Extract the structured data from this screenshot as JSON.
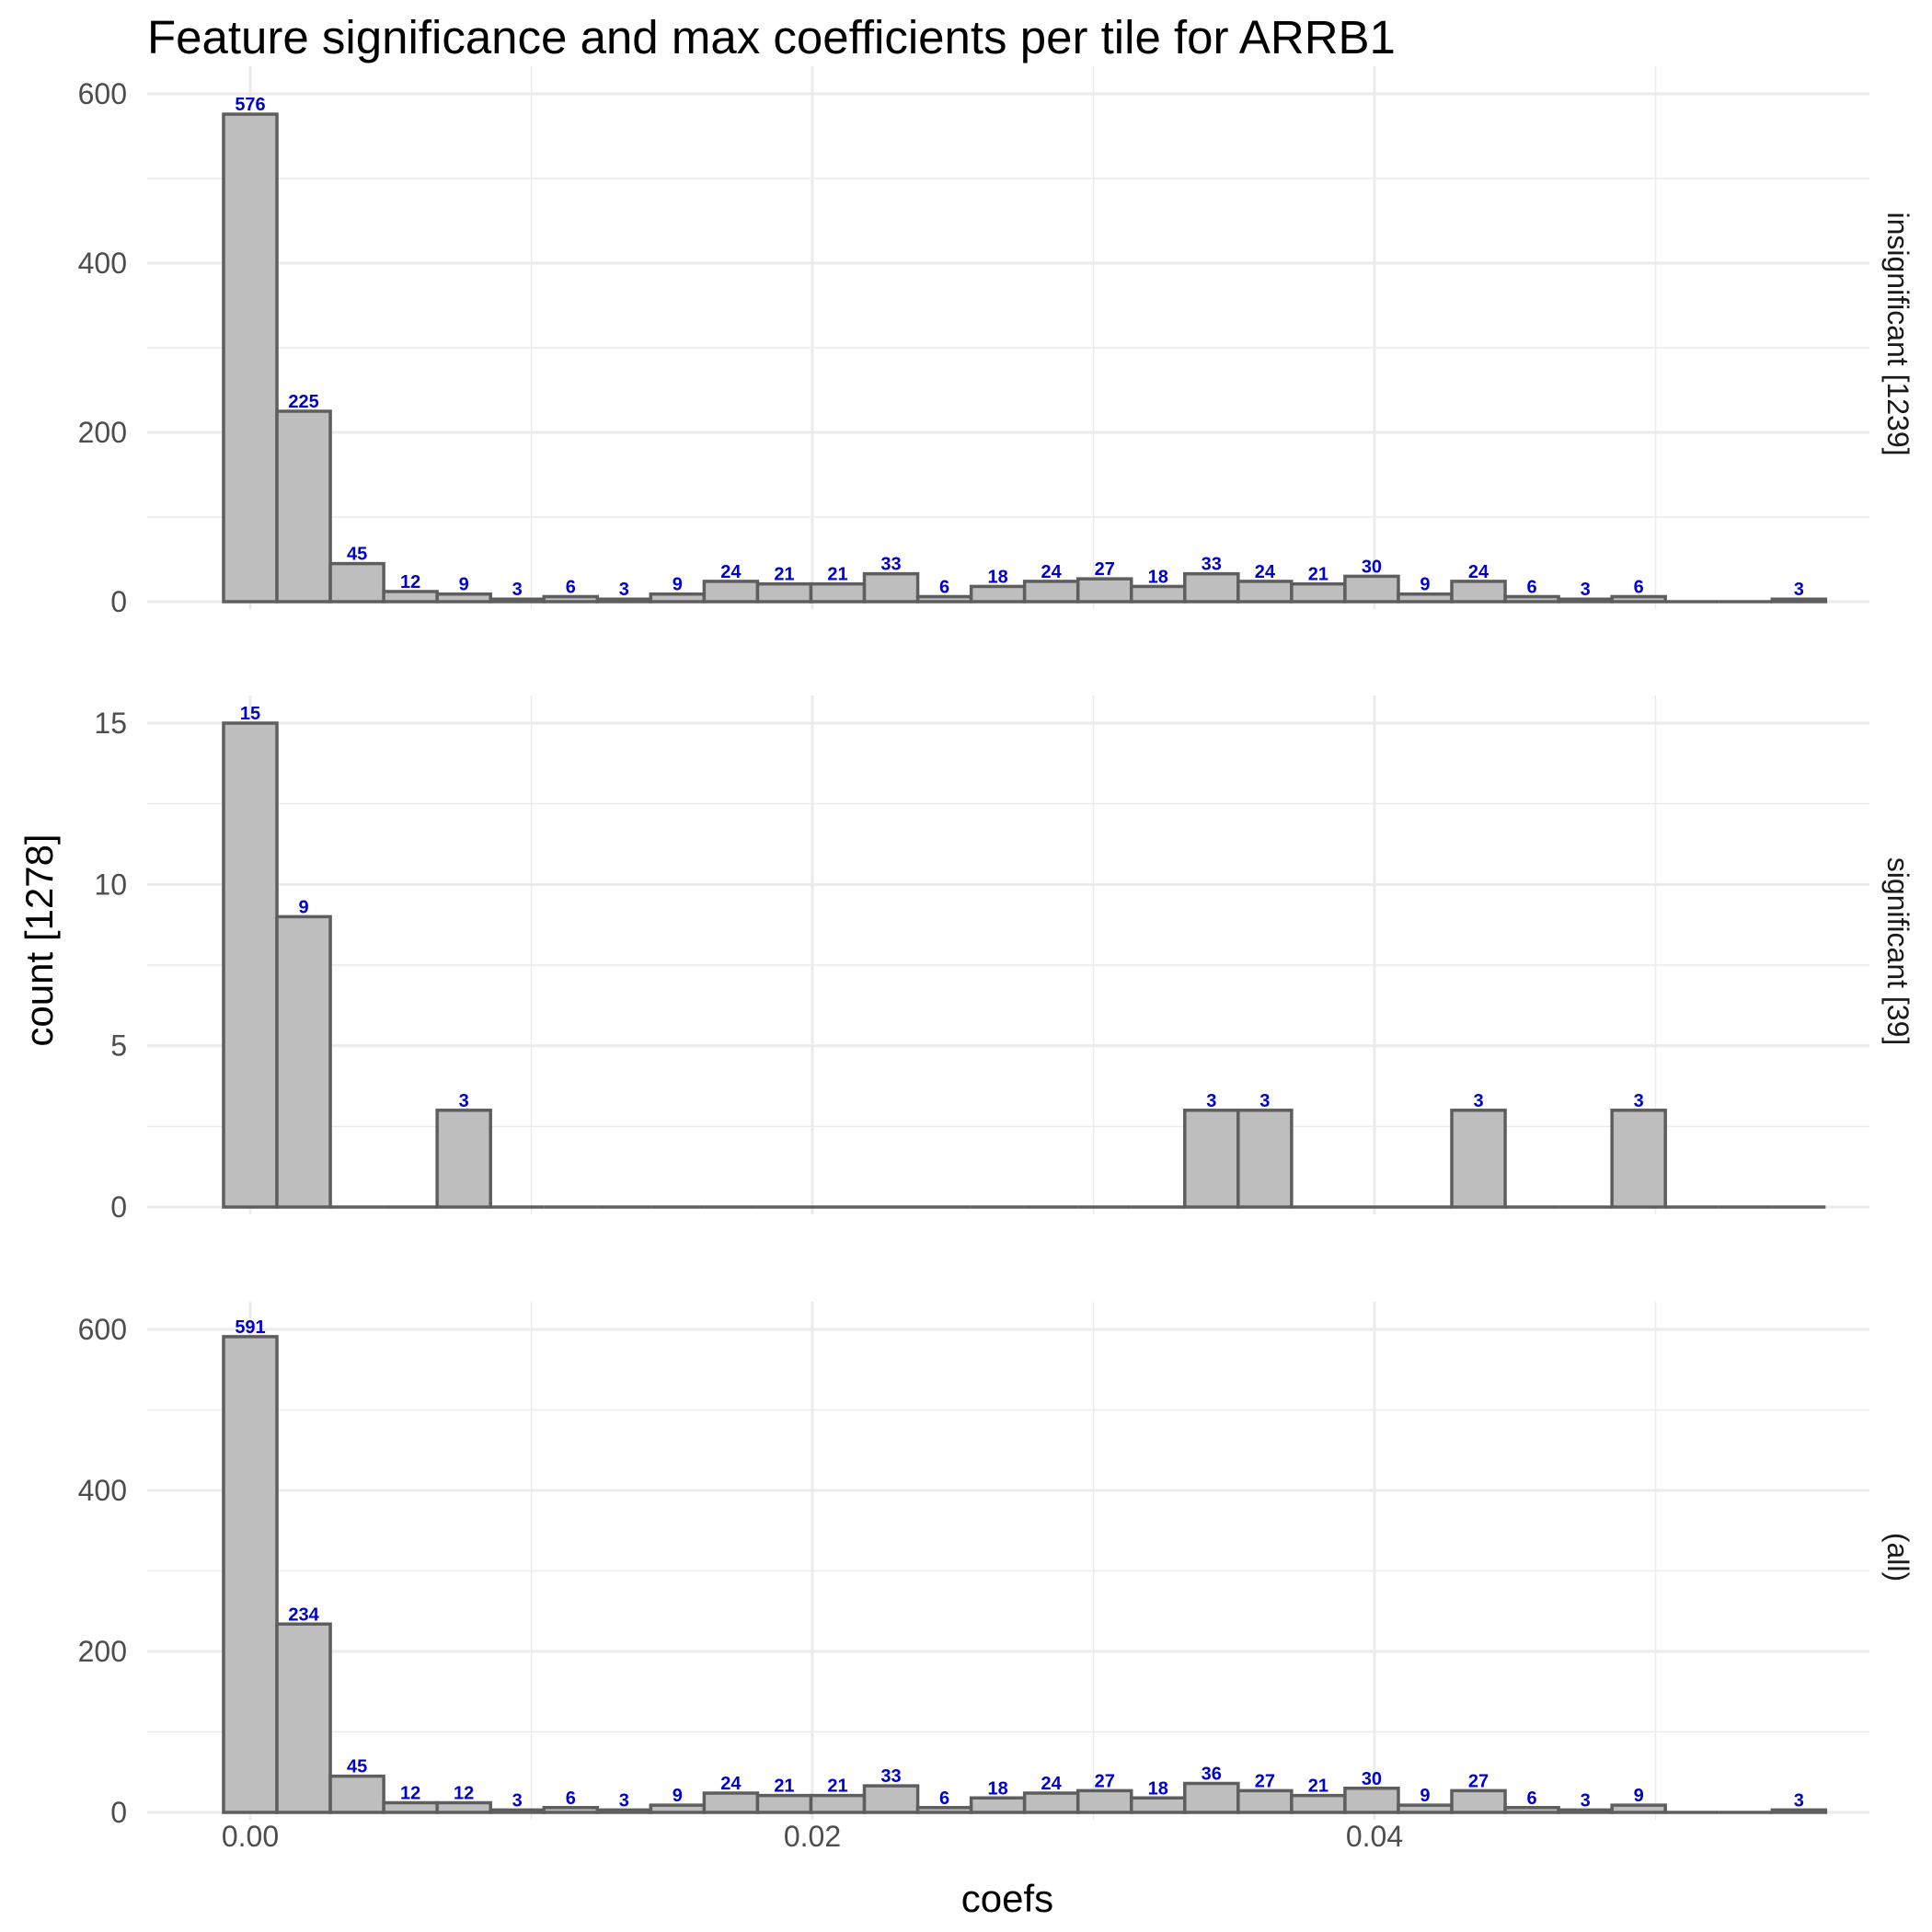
{
  "chart_data": {
    "type": "bar",
    "title": "Feature significance and max coefficients per tile for ARRB1",
    "xlabel": "coefs",
    "ylabel": "count [1278]",
    "x_ticks": [
      0.0,
      0.02,
      0.04
    ],
    "x_tick_labels": [
      "0.00",
      "0.02",
      "0.04"
    ],
    "bin_width": 0.0019,
    "bin_centers": [
      0.0,
      0.0019,
      0.0038,
      0.0057,
      0.0076,
      0.0095,
      0.0114,
      0.0133,
      0.0152,
      0.0171,
      0.019,
      0.0209,
      0.0228,
      0.0247,
      0.0266,
      0.0285,
      0.0304,
      0.0323,
      0.0342,
      0.0361,
      0.038,
      0.0399,
      0.0418,
      0.0437,
      0.0456,
      0.0475,
      0.0494,
      0.0513,
      0.0532,
      0.0551
    ],
    "grid": true,
    "bar_fill": "#bebebe",
    "bar_stroke": "#5e5e5e",
    "label_color": "#0000cc",
    "panels": [
      {
        "strip": "insignificant [1239]",
        "ylim": [
          0,
          600
        ],
        "y_ticks": [
          0,
          200,
          400,
          600
        ],
        "values": [
          576,
          225,
          45,
          12,
          9,
          3,
          6,
          3,
          9,
          24,
          21,
          21,
          33,
          6,
          18,
          24,
          27,
          18,
          33,
          24,
          21,
          30,
          9,
          24,
          6,
          3,
          6,
          0,
          0,
          3
        ]
      },
      {
        "strip": "significant [39]",
        "ylim": [
          0,
          15
        ],
        "y_ticks": [
          0,
          5,
          10,
          15
        ],
        "values": [
          15,
          9,
          0,
          0,
          3,
          0,
          0,
          0,
          0,
          0,
          0,
          0,
          0,
          0,
          0,
          0,
          0,
          0,
          3,
          3,
          0,
          0,
          0,
          3,
          0,
          0,
          3,
          0,
          0,
          0
        ]
      },
      {
        "strip": "(all)",
        "ylim": [
          0,
          600
        ],
        "y_ticks": [
          0,
          200,
          400,
          600
        ],
        "values": [
          591,
          234,
          45,
          12,
          12,
          3,
          6,
          3,
          9,
          24,
          21,
          21,
          33,
          6,
          18,
          24,
          27,
          18,
          36,
          27,
          21,
          30,
          9,
          27,
          6,
          3,
          9,
          0,
          0,
          3
        ]
      }
    ]
  }
}
